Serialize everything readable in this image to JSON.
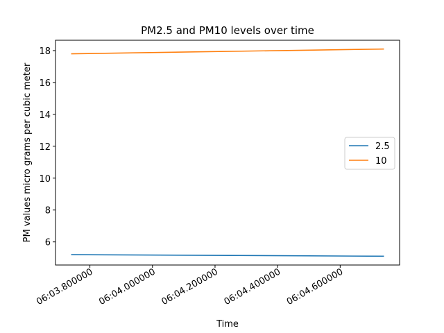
{
  "chart_data": {
    "type": "line",
    "title": "PM2.5 and PM10 levels over time",
    "xlabel": "Time",
    "ylabel": "PM values micro grams per cubic meter",
    "x": [
      "06:03.740000",
      "06:04.740000"
    ],
    "x_seconds": [
      3.74,
      4.74
    ],
    "xlim_seconds": [
      3.69,
      4.79
    ],
    "xticks": [
      {
        "label": "06:03.800000",
        "sec": 3.8
      },
      {
        "label": "06:04.000000",
        "sec": 4.0
      },
      {
        "label": "06:04.200000",
        "sec": 4.2
      },
      {
        "label": "06:04.400000",
        "sec": 4.4
      },
      {
        "label": "06:04.600000",
        "sec": 4.6
      }
    ],
    "ylim": [
      4.55,
      18.65
    ],
    "yticks": [
      6,
      8,
      10,
      12,
      14,
      16,
      18
    ],
    "grid": false,
    "legend_position": "center-right",
    "series": [
      {
        "name": "2.5",
        "color": "#1f77b4",
        "values": [
          5.2,
          5.1
        ]
      },
      {
        "name": "10",
        "color": "#ff7f0e",
        "values": [
          17.8,
          18.1
        ]
      }
    ]
  }
}
